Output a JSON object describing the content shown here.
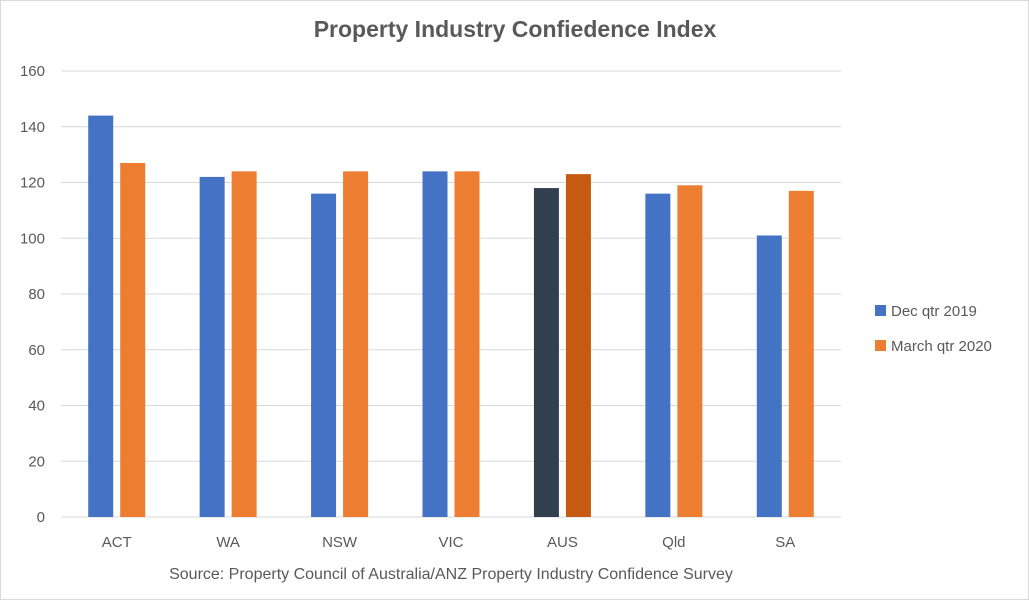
{
  "chart_data": {
    "type": "bar",
    "title": "Property Industry Confiedence Index",
    "categories": [
      "ACT",
      "WA",
      "NSW",
      "VIC",
      "AUS",
      "Qld",
      "SA"
    ],
    "series": [
      {
        "name": "Dec qtr 2019",
        "color": "#4472C4",
        "highlight_color": "#323F4F",
        "values": [
          144,
          122,
          116,
          124,
          118,
          116,
          101
        ]
      },
      {
        "name": "March qtr 2020",
        "color": "#ED7D31",
        "highlight_color": "#C55A11",
        "values": [
          127,
          124,
          124,
          124,
          123,
          119,
          117
        ]
      }
    ],
    "highlighted_category": "AUS",
    "ylim": [
      0,
      160
    ],
    "yticks": [
      0,
      20,
      40,
      60,
      80,
      100,
      120,
      140,
      160
    ],
    "grid": true,
    "legend_position": "right",
    "source_note": "Source: Property Council of Australia/ANZ Property Industry Confidence Survey"
  }
}
